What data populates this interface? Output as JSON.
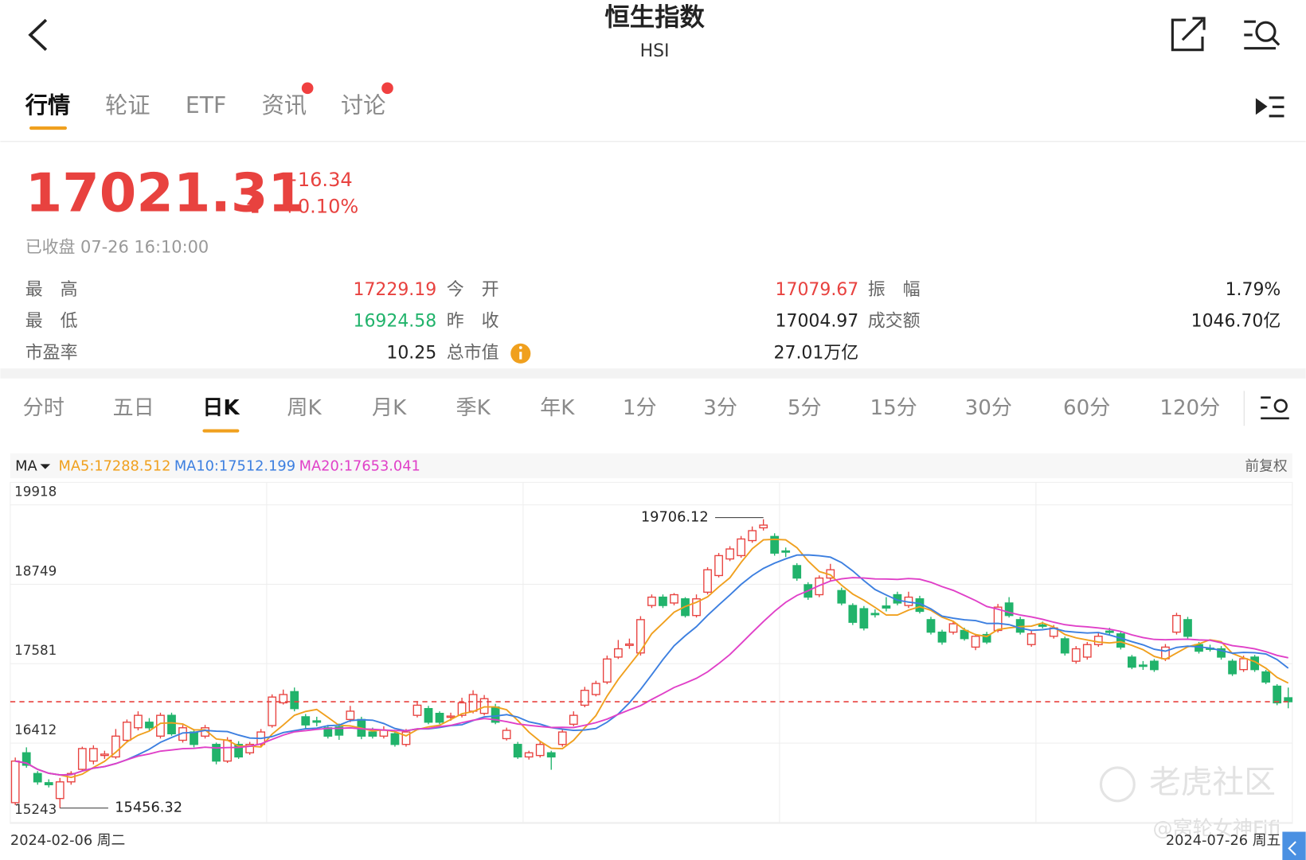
{
  "header": {
    "title": "恒生指数",
    "subtitle": "HSI"
  },
  "tabs": [
    "行情",
    "轮证",
    "ETF",
    "资讯",
    "讨论"
  ],
  "quote": {
    "price": "17021.31",
    "change": "+16.34",
    "change_pct": "+0.10%",
    "status": "已收盘 07-26 16:10:00"
  },
  "stats": [
    {
      "label": "最　高",
      "value": "17229.19",
      "color": "#e8423f"
    },
    {
      "label": "今　开",
      "value": "17079.67",
      "color": "#e8423f"
    },
    {
      "label": "振　幅",
      "value": "1.79%",
      "color": "#222222"
    },
    {
      "label": "最　低",
      "value": "16924.58",
      "color": "#21b36b"
    },
    {
      "label": "昨　收",
      "value": "17004.97",
      "color": "#222222"
    },
    {
      "label": "成交额",
      "value": "1046.70亿",
      "color": "#222222"
    },
    {
      "label": "市盈率",
      "value": "10.25",
      "color": "#222222"
    },
    {
      "label": "总市值",
      "value": "27.01万亿",
      "color": "#222222"
    }
  ],
  "periods": [
    "分时",
    "五日",
    "日K",
    "周K",
    "月K",
    "季K",
    "年K",
    "1分",
    "3分",
    "5分",
    "15分",
    "30分",
    "60分",
    "120分"
  ],
  "chart_data": {
    "type": "candlestick",
    "indicator": "MA",
    "adjust": "前复权",
    "up_color": "#e8423f",
    "down_color": "#21b36b",
    "ma": [
      {
        "name": "MA5",
        "period": 5,
        "color": "#f0a01e",
        "label": "MA5:17288.512"
      },
      {
        "name": "MA10",
        "period": 10,
        "color": "#3c7fe0",
        "label": "MA10:17512.199"
      },
      {
        "name": "MA20",
        "period": 20,
        "color": "#e040c8",
        "label": "MA20:17653.041"
      }
    ],
    "ylim": [
      15243,
      19918
    ],
    "yticks": [
      19918,
      18749,
      17581,
      16412,
      15243
    ],
    "x_labels": [
      "2024-02-06 周二",
      "2024-07-26 周五"
    ],
    "high_label": "19706.12",
    "low_label": "15456.32",
    "watermark": "老虎社区",
    "credit": "@窝轮女神Fifi",
    "ohlc": [
      [
        15536,
        16200,
        15500,
        16148
      ],
      [
        16270,
        16350,
        16050,
        16087
      ],
      [
        15965,
        16000,
        15800,
        15842
      ],
      [
        15830,
        15880,
        15760,
        15800
      ],
      [
        15597,
        15900,
        15456.32,
        15842
      ],
      [
        15842,
        16000,
        15800,
        15965
      ],
      [
        16026,
        16360,
        16000,
        16332
      ],
      [
        16148,
        16380,
        16100,
        16332
      ],
      [
        16230,
        16300,
        16180,
        16250
      ],
      [
        16209,
        16620,
        16180,
        16515
      ],
      [
        16454,
        16760,
        16420,
        16720
      ],
      [
        16638,
        16880,
        16600,
        16821
      ],
      [
        16720,
        16780,
        16600,
        16638
      ],
      [
        16515,
        16860,
        16480,
        16821
      ],
      [
        16821,
        16860,
        16520,
        16550
      ],
      [
        16454,
        16680,
        16420,
        16638
      ],
      [
        16576,
        16620,
        16350,
        16393
      ],
      [
        16515,
        16680,
        16480,
        16638
      ],
      [
        16393,
        16420,
        16100,
        16148
      ],
      [
        16148,
        16500,
        16120,
        16454
      ],
      [
        16393,
        16440,
        16180,
        16209
      ],
      [
        16270,
        16430,
        16240,
        16393
      ],
      [
        16393,
        16620,
        16360,
        16576
      ],
      [
        16670,
        17130,
        16640,
        17090
      ],
      [
        17005,
        17200,
        16980,
        17127
      ],
      [
        17170,
        17230,
        16880,
        16920
      ],
      [
        16800,
        16840,
        16620,
        16680
      ],
      [
        16740,
        16800,
        16660,
        16720
      ],
      [
        16638,
        16680,
        16480,
        16515
      ],
      [
        16650,
        16700,
        16460,
        16530
      ],
      [
        16760,
        16960,
        16720,
        16882
      ],
      [
        16760,
        16800,
        16470,
        16515
      ],
      [
        16576,
        16640,
        16480,
        16515
      ],
      [
        16515,
        16660,
        16480,
        16600
      ],
      [
        16550,
        16600,
        16360,
        16393
      ],
      [
        16393,
        16620,
        16360,
        16576
      ],
      [
        16821,
        17030,
        16790,
        16970
      ],
      [
        16920,
        16960,
        16690,
        16720
      ],
      [
        16850,
        16880,
        16690,
        16720
      ],
      [
        16800,
        16860,
        16740,
        16810
      ],
      [
        16821,
        17080,
        16790,
        17005
      ],
      [
        16882,
        17190,
        16850,
        17127
      ],
      [
        16850,
        17120,
        16820,
        17066
      ],
      [
        16944,
        16990,
        16690,
        16720
      ],
      [
        16478,
        16640,
        16450,
        16600
      ],
      [
        16393,
        16430,
        16180,
        16209
      ],
      [
        16209,
        16300,
        16170,
        16270
      ],
      [
        16230,
        16430,
        16200,
        16393
      ],
      [
        16270,
        16300,
        16020,
        16209
      ],
      [
        16393,
        16620,
        16360,
        16576
      ],
      [
        16690,
        16880,
        16660,
        16821
      ],
      [
        16970,
        17240,
        16940,
        17189
      ],
      [
        17127,
        17330,
        17100,
        17290
      ],
      [
        17311,
        17700,
        17280,
        17650
      ],
      [
        17678,
        17930,
        17650,
        17800
      ],
      [
        17850,
        17950,
        17800,
        17870
      ],
      [
        17739,
        18280,
        17700,
        18229
      ],
      [
        18437,
        18600,
        18400,
        18560
      ],
      [
        18560,
        18600,
        18400,
        18437
      ],
      [
        18474,
        18620,
        18440,
        18596
      ],
      [
        18535,
        18560,
        18260,
        18290
      ],
      [
        18290,
        18600,
        18260,
        18535
      ],
      [
        18633,
        19000,
        18600,
        18963
      ],
      [
        18878,
        19210,
        18850,
        19171
      ],
      [
        19122,
        19310,
        19090,
        19269
      ],
      [
        19171,
        19460,
        19140,
        19416
      ],
      [
        19392,
        19600,
        19360,
        19538
      ],
      [
        19580,
        19706.12,
        19540,
        19620
      ],
      [
        19453,
        19500,
        19170,
        19208
      ],
      [
        19240,
        19290,
        19150,
        19230
      ],
      [
        19024,
        19060,
        18800,
        18841
      ],
      [
        18743,
        18780,
        18520,
        18560
      ],
      [
        18596,
        18880,
        18560,
        18841
      ],
      [
        18841,
        19050,
        18800,
        18963
      ],
      [
        18657,
        18700,
        18440,
        18474
      ],
      [
        18437,
        18470,
        18150,
        18190
      ],
      [
        18390,
        18430,
        18070,
        18107
      ],
      [
        18320,
        18380,
        18260,
        18310
      ],
      [
        18430,
        18560,
        18350,
        18400
      ],
      [
        18596,
        18640,
        18440,
        18474
      ],
      [
        18437,
        18640,
        18400,
        18560
      ],
      [
        18535,
        18580,
        18320,
        18351
      ],
      [
        18229,
        18270,
        18010,
        18045
      ],
      [
        18045,
        18080,
        17860,
        17900
      ],
      [
        18045,
        18210,
        18010,
        18168
      ],
      [
        18070,
        18110,
        17920,
        17950
      ],
      [
        17825,
        18020,
        17780,
        17984
      ],
      [
        18010,
        18050,
        17870,
        17900
      ],
      [
        18070,
        18460,
        18040,
        18413
      ],
      [
        18474,
        18560,
        18260,
        18290
      ],
      [
        18229,
        18270,
        18010,
        18045
      ],
      [
        17862,
        18070,
        17830,
        18020
      ],
      [
        18150,
        18200,
        18100,
        18140
      ],
      [
        17984,
        18150,
        17950,
        18107
      ],
      [
        17947,
        17980,
        17700,
        17739
      ],
      [
        17617,
        17840,
        17580,
        17800
      ],
      [
        17678,
        17900,
        17640,
        17862
      ],
      [
        17862,
        18030,
        17830,
        17984
      ],
      [
        18060,
        18110,
        18000,
        18045
      ],
      [
        18020,
        18060,
        17790,
        17825
      ],
      [
        17678,
        17710,
        17500,
        17530
      ],
      [
        17560,
        17620,
        17490,
        17550
      ],
      [
        17617,
        17650,
        17460,
        17494
      ],
      [
        17654,
        17870,
        17620,
        17825
      ],
      [
        18045,
        18330,
        18010,
        18290
      ],
      [
        18229,
        18270,
        17950,
        17984
      ],
      [
        17862,
        17900,
        17730,
        17765
      ],
      [
        17810,
        17860,
        17760,
        17800
      ],
      [
        17800,
        17840,
        17640,
        17678
      ],
      [
        17617,
        17650,
        17400,
        17433
      ],
      [
        17494,
        17700,
        17460,
        17654
      ],
      [
        17678,
        17710,
        17460,
        17494
      ],
      [
        17460,
        17490,
        17280,
        17311
      ],
      [
        17250,
        17280,
        16970,
        17005
      ],
      [
        17079.67,
        17229.19,
        16924.58,
        17021.31
      ]
    ]
  }
}
